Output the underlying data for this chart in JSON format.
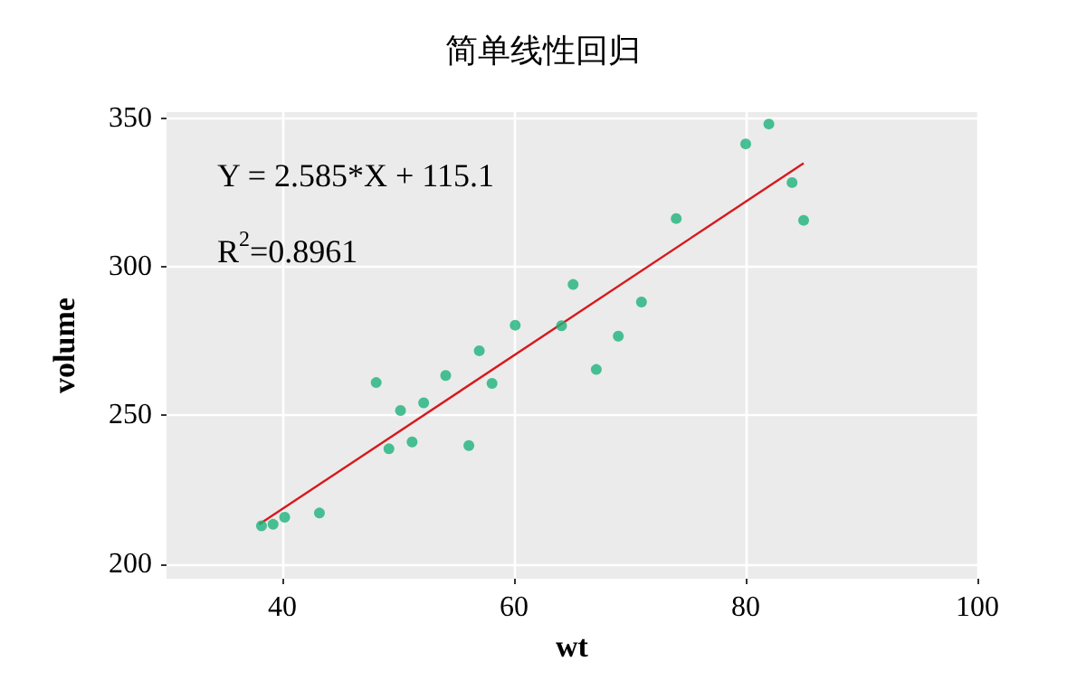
{
  "chart_data": {
    "type": "scatter",
    "title": "简单线性回归",
    "xlabel": "wt",
    "ylabel": "volume",
    "xlim": [
      30,
      100
    ],
    "xticks": [
      40,
      60,
      80,
      100
    ],
    "ylim": [
      195,
      352
    ],
    "yticks": [
      200,
      250,
      300,
      350
    ],
    "grid": true,
    "annotations": [
      "Y = 2.585*X + 115.1",
      "R$^{2}$=0.8961"
    ],
    "series": [
      {
        "marker": "circle",
        "color": "#1db37c",
        "x": [
          38.2,
          39.2,
          40.2,
          43.2,
          48.1,
          49.2,
          50.2,
          51.2,
          52.2,
          54.1,
          56.1,
          57.0,
          58.1,
          60.1,
          64.1,
          65.1,
          67.1,
          69.0,
          71.0,
          74.0,
          80.0,
          82.0,
          84.0,
          85.0
        ],
        "values": [
          212.8,
          213.3,
          215.7,
          217.1,
          261,
          238.7,
          251.6,
          241,
          254.2,
          263.4,
          239.8,
          271.7,
          260.7,
          280.3,
          280.1,
          294,
          265.4,
          276.6,
          288.1,
          316.2,
          341.3,
          348,
          328.3,
          315.6
        ]
      },
      {
        "type": "line",
        "color": "#d7191c",
        "x": [
          38,
          85
        ],
        "values": [
          213.3,
          334.8
        ]
      }
    ]
  }
}
